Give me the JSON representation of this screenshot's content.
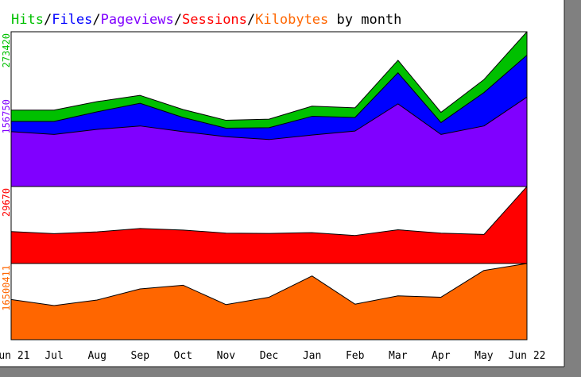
{
  "colors": {
    "hits": "#00c000",
    "files": "#0000ff",
    "pageviews": "#8000ff",
    "sessions": "#ff0000",
    "kilobytes": "#ff6600",
    "title_plain": "#000000",
    "frame": "#808080"
  },
  "title": {
    "hits": "Hits",
    "sep1": "/",
    "files": "Files",
    "sep2": "/",
    "pageviews": "Pageviews",
    "sep3": "/",
    "sessions": "Sessions",
    "sep4": "/",
    "kilobytes": "Kilobytes",
    "suffix": " by month"
  },
  "chart_data": {
    "type": "area",
    "x": [
      "Jun 21",
      "Jul",
      "Aug",
      "Sep",
      "Oct",
      "Nov",
      "Dec",
      "Jan",
      "Feb",
      "Mar",
      "Apr",
      "May",
      "Jun 22"
    ],
    "panels": [
      {
        "id": "top",
        "ylim": [
          0,
          273420
        ],
        "axis_labels": [
          {
            "text": "273420",
            "value": 273420,
            "color_key": "hits"
          },
          {
            "text": "156750",
            "value": 156750,
            "color_key": "pageviews"
          }
        ],
        "series": [
          {
            "name": "Hits",
            "color_key": "hits",
            "values": [
              135000,
              135000,
              150000,
              161000,
              136000,
              117000,
              119000,
              142000,
              139000,
              223000,
              131000,
              189000,
              274000
            ]
          },
          {
            "name": "Files",
            "color_key": "files",
            "values": [
              115000,
              115000,
              132000,
              147000,
              122000,
              103000,
              104000,
              124000,
              122000,
              201000,
              113000,
              166000,
              232000
            ]
          },
          {
            "name": "Pageviews",
            "color_key": "pageviews",
            "values": [
              97000,
              92000,
              101000,
              107000,
              97000,
              88000,
              83000,
              91000,
              98000,
              146000,
              92000,
              107000,
              158000
            ]
          }
        ]
      },
      {
        "id": "middle",
        "ylim": [
          0,
          29670
        ],
        "axis_labels": [
          {
            "text": "29670",
            "value": 29670,
            "color_key": "sessions"
          }
        ],
        "series": [
          {
            "name": "Sessions",
            "color_key": "sessions",
            "values": [
              12300,
              11500,
              12200,
              13500,
              12900,
              11700,
              11600,
              11900,
              10800,
              13000,
              11700,
              11200,
              29670
            ]
          }
        ]
      },
      {
        "id": "bottom",
        "ylim": [
          0,
          16500411
        ],
        "axis_labels": [
          {
            "text": "16500411",
            "value": 16500411,
            "color_key": "kilobytes"
          }
        ],
        "series": [
          {
            "name": "Kilobytes",
            "color_key": "kilobytes",
            "values": [
              8700000,
              7400000,
              8600000,
              11000000,
              11800000,
              7600000,
              9200000,
              13800000,
              7700000,
              9500000,
              9200000,
              15000000,
              16500000
            ]
          }
        ]
      }
    ]
  }
}
